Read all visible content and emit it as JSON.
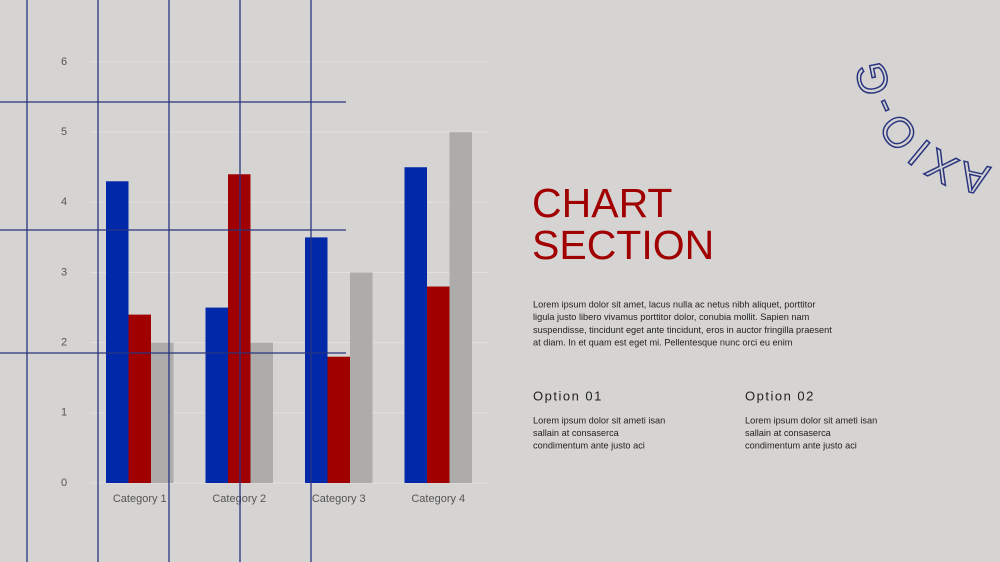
{
  "chart_data": {
    "type": "bar",
    "categories": [
      "Category 1",
      "Category 2",
      "Category 3",
      "Category 4"
    ],
    "series": [
      {
        "color": "#0028a8",
        "values": [
          4.3,
          2.5,
          3.5,
          4.5
        ]
      },
      {
        "color": "#a00000",
        "values": [
          2.4,
          4.4,
          1.8,
          2.8
        ]
      },
      {
        "color": "#adacaa",
        "values": [
          2,
          2,
          3,
          5
        ]
      }
    ],
    "ylim": [
      0,
      6
    ],
    "yticks": [
      0,
      1,
      2,
      3,
      4,
      5,
      6
    ],
    "grid": true
  },
  "slide": {
    "title_lines": [
      "CHART",
      "SECTION"
    ],
    "body_lines": [
      "Lorem ipsum dolor sit amet, lacus nulla ac netus nibh aliquet, porttitor",
      "ligula justo libero vivamus porttitor dolor, conubia mollit. Sapien nam",
      "suspendisse, tincidunt eget ante tincidunt, eros in auctor fringilla praesent",
      "at diam. In et quam est eget mi. Pellentesque nunc orci eu enim"
    ],
    "options": [
      {
        "title": "Option 01",
        "lines": [
          "Lorem ipsum dolor sit ameti isan",
          "sallain at consaserca",
          "condimentum ante justo aci"
        ]
      },
      {
        "title": "Option 02",
        "lines": [
          "Lorem ipsum dolor sit ameti isan",
          "sallain at consaserca",
          "condimentum ante justo aci"
        ]
      }
    ],
    "decoration": "AXIO-G"
  }
}
